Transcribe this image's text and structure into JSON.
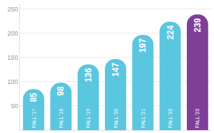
{
  "chart_data": {
    "type": "bar",
    "categories": [
      "FALL '17",
      "FALL '18",
      "FALL '19",
      "FALL '20",
      "FALL '21",
      "FALL '22",
      "FALL '23"
    ],
    "values": [
      85,
      98,
      136,
      147,
      197,
      224,
      239
    ],
    "colors": [
      "#5bc6e0",
      "#5bc6e0",
      "#5bc6e0",
      "#5bc6e0",
      "#5bc6e0",
      "#5bc6e0",
      "#7e3f98"
    ],
    "ylim": [
      0,
      260
    ],
    "yticks": [
      50,
      100,
      150,
      200,
      250
    ],
    "grid": true,
    "data_labels": true,
    "tick_labels": "y"
  }
}
